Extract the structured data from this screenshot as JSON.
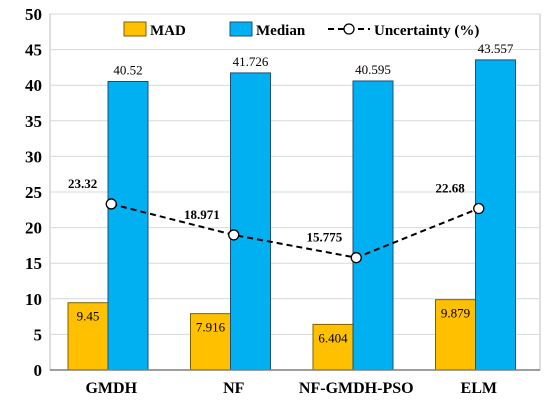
{
  "chart_data": {
    "type": "bar",
    "categories": [
      "GMDH",
      "NF",
      "NF-GMDH-PSO",
      "ELM"
    ],
    "series": [
      {
        "name": "MAD",
        "type": "bar",
        "color": "#ffc000",
        "values": [
          9.45,
          7.916,
          6.404,
          9.879
        ],
        "labels": [
          "9.45",
          "7.916",
          "6.404",
          "9.879"
        ]
      },
      {
        "name": "Median",
        "type": "bar",
        "color": "#00b0f0",
        "values": [
          40.52,
          41.726,
          40.595,
          43.557
        ],
        "labels": [
          "40.52",
          "41.726",
          "40.595",
          "43.557"
        ]
      },
      {
        "name": "Uncertainty (%)",
        "type": "line",
        "style": "dashed",
        "marker": "open-circle",
        "color": "#000000",
        "values": [
          23.32,
          18.971,
          15.775,
          22.68
        ],
        "labels": [
          "23.32",
          "18.971",
          "15.775",
          "22.68"
        ]
      }
    ],
    "title": "",
    "xlabel": "",
    "ylabel": "",
    "ylim": [
      0,
      50
    ],
    "yticks": [
      0,
      5,
      10,
      15,
      20,
      25,
      30,
      35,
      40,
      45,
      50
    ],
    "grid": true,
    "legend": "top-center"
  }
}
